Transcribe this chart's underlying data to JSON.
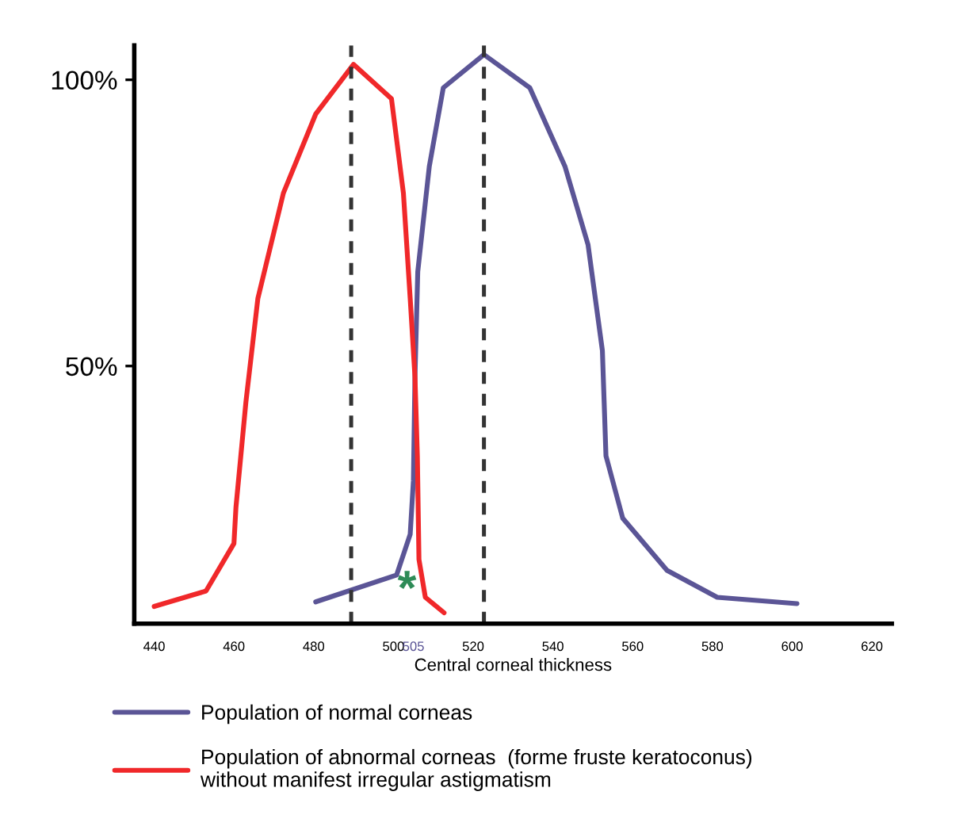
{
  "chart_data": {
    "type": "line",
    "xlabel": "Central corneal thickness",
    "xlim": [
      435,
      625
    ],
    "xticks": [
      440,
      460,
      480,
      500,
      505,
      520,
      540,
      560,
      580,
      600,
      620
    ],
    "ylim": [
      5,
      106
    ],
    "yticks": [
      {
        "value": 50,
        "label": "50%"
      },
      {
        "value": 100,
        "label": "100%"
      }
    ],
    "series": [
      {
        "name": "Population of normal corneas",
        "color": "#5b5596",
        "x": [
          480.5,
          500.8,
          504.2,
          505,
          505.4,
          506.1,
          509,
          512.5,
          522.7,
          534.2,
          543,
          548.8,
          552.4,
          553.3,
          557.5,
          568.6,
          581.2,
          601.2
        ],
        "values": [
          8.8,
          13.5,
          20.6,
          29.9,
          48.1,
          66.5,
          84.9,
          98.6,
          104.4,
          98.6,
          84.9,
          71.2,
          52.7,
          34.3,
          23.4,
          14.3,
          9.6,
          8.5
        ]
      },
      {
        "name": "Population of abnormal corneas  (forme fruste keratoconus)\nwithout manifest irregular astigmatism",
        "color": "#f0282a",
        "x": [
          440,
          453,
          460,
          460.5,
          463,
          466,
          472.4,
          480.5,
          490,
          499.5,
          502.5,
          504.2,
          505.4,
          506,
          506.4,
          508,
          512.7
        ],
        "values": [
          8,
          10.7,
          19,
          25.3,
          43.7,
          61.8,
          80.2,
          94,
          102.7,
          96.7,
          80.2,
          61.8,
          48.1,
          34.3,
          16.2,
          9.6,
          6.9
        ]
      }
    ],
    "ref_lines": [
      {
        "axis": "x",
        "value": 489.4,
        "color": "#333333",
        "line_style": "dashed"
      },
      {
        "axis": "x",
        "value": 522.7,
        "color": "#333333",
        "line_style": "dashed"
      }
    ],
    "annotations": [
      "*"
    ],
    "legend": "bottom",
    "grid": false,
    "marker": "none",
    "line_style": "solid"
  }
}
